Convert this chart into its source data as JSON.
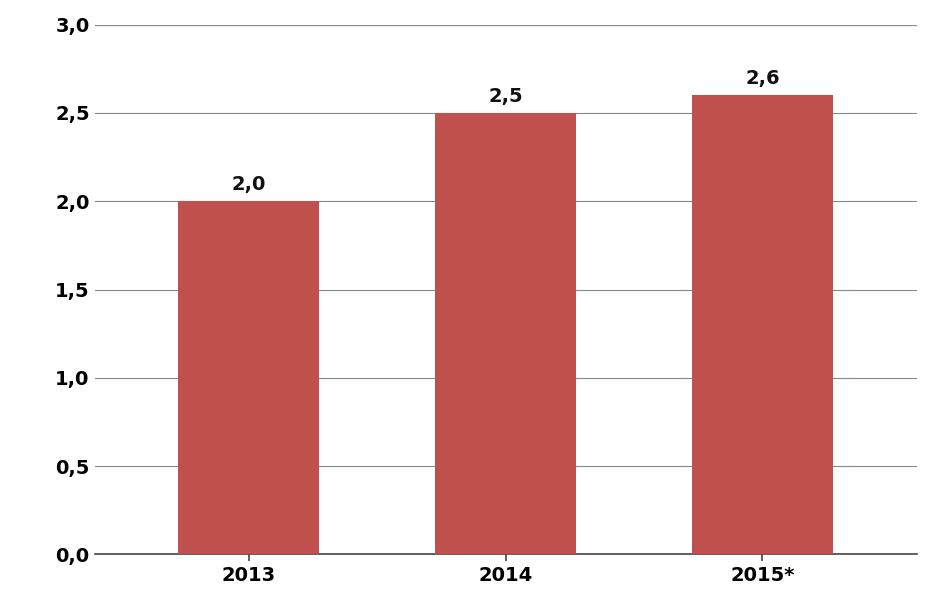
{
  "categories": [
    "2013",
    "2014",
    "2015*"
  ],
  "values": [
    2.0,
    2.5,
    2.6
  ],
  "bar_color": "#c0504d",
  "bar_labels": [
    "2,0",
    "2,5",
    "2,6"
  ],
  "ylim": [
    0,
    3.0
  ],
  "yticks": [
    0.0,
    0.5,
    1.0,
    1.5,
    2.0,
    2.5,
    3.0
  ],
  "ytick_labels": [
    "0,0",
    "0,5",
    "1,0",
    "1,5",
    "2,0",
    "2,5",
    "3,0"
  ],
  "background_color": "#ffffff",
  "bar_label_fontsize": 14,
  "tick_fontsize": 14,
  "bar_width": 0.55,
  "grid_color": "#888888",
  "edge_color": "none"
}
